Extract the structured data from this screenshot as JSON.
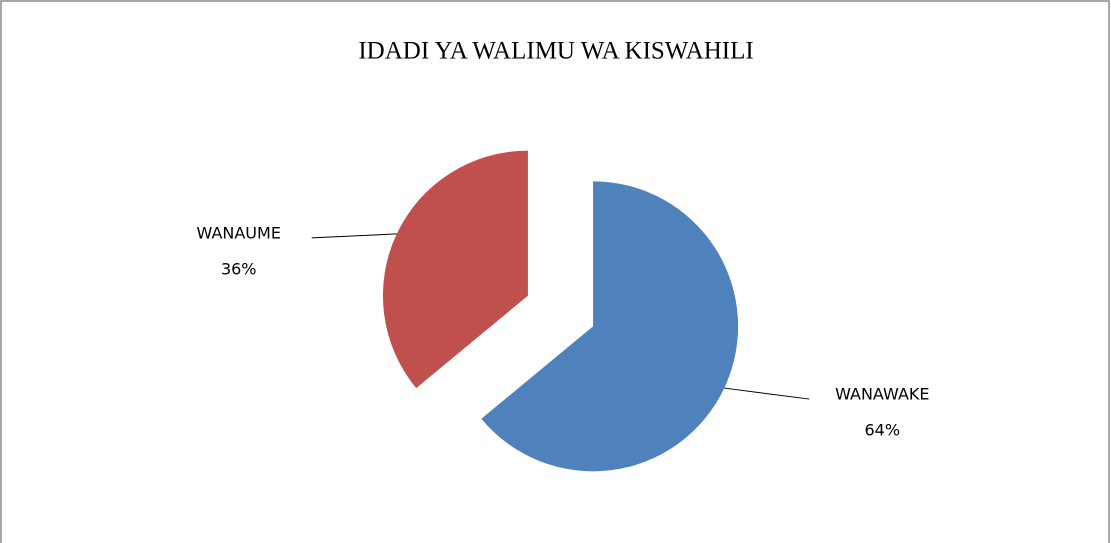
{
  "chart_data": {
    "type": "pie",
    "title": "IDADI YA WALIMU WA KISWAHILI",
    "categories": [
      "WANAWAKE",
      "WANAUME"
    ],
    "values": [
      64,
      36
    ],
    "value_labels": [
      "64%",
      "36%"
    ],
    "colors": [
      "#4f81bd",
      "#c0504d"
    ]
  }
}
